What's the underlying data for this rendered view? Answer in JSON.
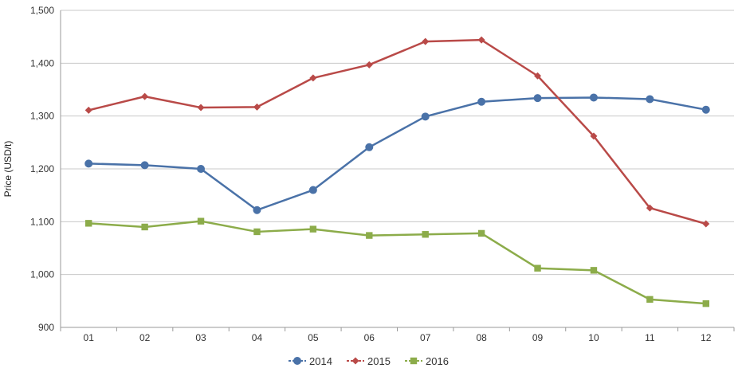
{
  "chart_data": {
    "type": "line",
    "title": "",
    "xlabel": "",
    "ylabel": "Price (USD/t)",
    "ylim": [
      900,
      1500
    ],
    "yticks": [
      900,
      1000,
      1100,
      1200,
      1300,
      1400,
      1500
    ],
    "ytick_labels": [
      "900",
      "1,000",
      "1,100",
      "1,200",
      "1,300",
      "1,400",
      "1,500"
    ],
    "categories": [
      "01",
      "02",
      "03",
      "04",
      "05",
      "06",
      "07",
      "08",
      "09",
      "10",
      "11",
      "12"
    ],
    "grid": "horizontal",
    "legend_position": "bottom-center",
    "series": [
      {
        "name": "2014",
        "color": "#4a72a8",
        "marker": "circle",
        "values": [
          1210,
          1207,
          1200,
          1122,
          1160,
          1241,
          1299,
          1327,
          1334,
          1335,
          1332,
          1312
        ]
      },
      {
        "name": "2015",
        "color": "#b94a48",
        "marker": "diamond",
        "values": [
          1311,
          1337,
          1316,
          1317,
          1372,
          1397,
          1441,
          1444,
          1376,
          1262,
          1126,
          1096
        ]
      },
      {
        "name": "2016",
        "color": "#8cac4a",
        "marker": "square",
        "values": [
          1097,
          1090,
          1101,
          1081,
          1086,
          1074,
          1076,
          1078,
          1012,
          1008,
          953,
          945
        ]
      }
    ]
  }
}
